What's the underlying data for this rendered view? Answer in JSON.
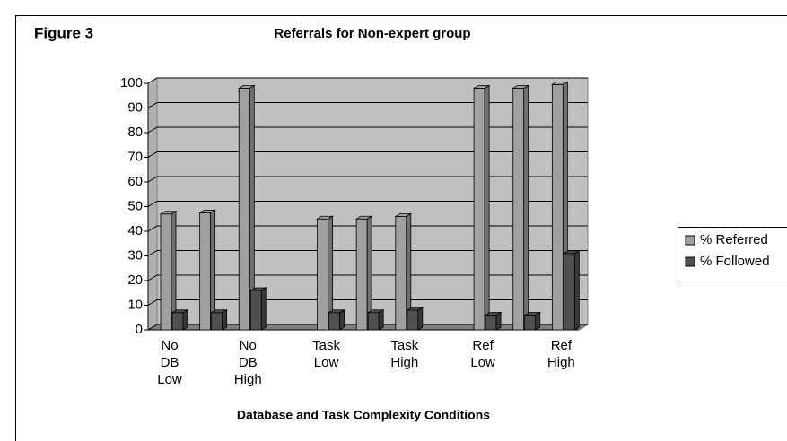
{
  "chart_data": {
    "type": "bar",
    "figure_label": "Figure 3",
    "title": "Referrals for Non-expert group",
    "x_label": "Database and Task Complexity Conditions",
    "categories": [
      "No DB Low",
      null,
      "No DB High",
      null,
      "Task Low",
      null,
      "Task High",
      null,
      "Ref Low",
      null,
      "Ref High"
    ],
    "series": [
      {
        "name": "% Referred",
        "color": "#a0a0a0",
        "values": [
          47,
          47.5,
          98,
          null,
          45,
          45,
          46,
          null,
          98,
          98,
          99.5
        ]
      },
      {
        "name": "% Followed",
        "color": "#505050",
        "values": [
          7,
          7,
          16,
          null,
          7,
          7,
          8,
          null,
          6,
          6,
          31
        ]
      }
    ],
    "ylim": [
      0,
      100
    ],
    "yticks": [
      0,
      10,
      20,
      30,
      40,
      50,
      60,
      70,
      80,
      90,
      100
    ],
    "grid": true,
    "legend": "right"
  }
}
